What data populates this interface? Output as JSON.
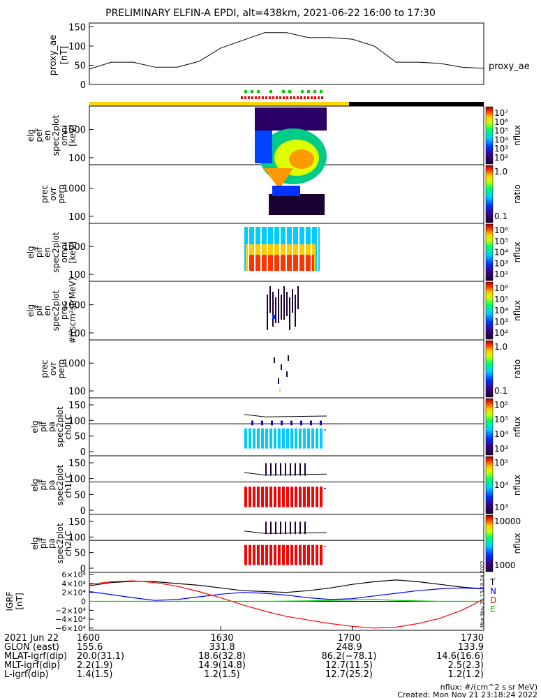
{
  "title": "PRELIMINARY ELFIN-A EPDI, alt=438km, 2021-06-22 16:00 to 17:30",
  "colors": {
    "orbit_sun": "#ffd700",
    "orbit_dark": "#000000",
    "tick_green": "#00cc00",
    "tick_red": "#ff0000",
    "igrf_x": "#000000",
    "igrf_y": "#0000ff",
    "igrf_z": "#ff0000",
    "igrf_e": "#00cc00"
  },
  "panels": [
    {
      "id": "ae",
      "ylabel": [
        "proxy_ae",
        "[nT]"
      ],
      "ticks": [
        "150",
        "100",
        "50",
        "0"
      ]
    },
    {
      "id": "p1",
      "ylabel": [
        "elg",
        "pef",
        "en",
        "spec2plot",
        "omni",
        "[keV]"
      ],
      "ticks": [
        "1000",
        "100"
      ],
      "cbar": {
        "kind": "log",
        "labels": [
          "10⁷",
          "10⁶",
          "10⁵",
          "10⁴",
          "10³",
          "10²"
        ],
        "unit": "nflux"
      }
    },
    {
      "id": "p2",
      "ylabel": [
        "prec",
        "ovr",
        "perp"
      ],
      "ticks": [
        "1000",
        "100"
      ],
      "cbar": {
        "kind": "ratio",
        "labels": [
          "1.0",
          "0.1"
        ],
        "unit": "ratio"
      }
    },
    {
      "id": "p3",
      "ylabel": [
        "elg",
        "pif",
        "en",
        "spec2plot",
        "omni",
        "[keV]"
      ],
      "ticks": [
        "1000",
        "100"
      ],
      "cbar": {
        "kind": "log",
        "labels": [
          "10⁶",
          "10⁵",
          "10⁴",
          "10³",
          "10²"
        ],
        "unit": "nflux"
      }
    },
    {
      "id": "p4",
      "ylabel": [
        "elg",
        "pif",
        "en",
        "spec2plot",
        "prec",
        "#/(scm²strMeV)"
      ],
      "ticks": [
        "1000",
        "100"
      ],
      "cbar": {
        "kind": "log",
        "labels": [
          "10⁶",
          "10⁵",
          "10⁴",
          "10³",
          "10²"
        ],
        "unit": "nflux"
      }
    },
    {
      "id": "p5",
      "ylabel": [
        "prec",
        "ovr",
        "perp"
      ],
      "ticks": [
        "1000",
        "100"
      ],
      "cbar": {
        "kind": "ratio",
        "labels": [
          "1.0",
          "0.1"
        ],
        "unit": "ratio"
      }
    },
    {
      "id": "p6",
      "ylabel": [
        "elg",
        "pif",
        "pa",
        "spec2plot",
        "ch0LC"
      ],
      "ticks": [
        "150",
        "100",
        "50",
        "0"
      ],
      "cbar": {
        "kind": "log",
        "labels": [
          "10⁵",
          "10⁵",
          "10⁴",
          "10³"
        ],
        "unit": "nflux"
      }
    },
    {
      "id": "p7",
      "ylabel": [
        "elg",
        "pif",
        "pa",
        "spec2plot",
        "ch1LC"
      ],
      "ticks": [
        "150",
        "100",
        "50",
        "0"
      ],
      "cbar": {
        "kind": "log",
        "labels": [
          "10⁵",
          "10⁴",
          "10³"
        ],
        "unit": "nflux"
      }
    },
    {
      "id": "p8",
      "ylabel": [
        "elg",
        "pif",
        "pa",
        "spec2plot",
        "ch2LC"
      ],
      "ticks": [
        "150",
        "100",
        "50",
        "0"
      ],
      "cbar": {
        "kind": "log",
        "labels": [
          "10000",
          "1000"
        ],
        "unit": "nflux"
      }
    },
    {
      "id": "igrf",
      "ylabel": [
        "IGRF",
        "[nT]"
      ],
      "ticks": [
        "6×10⁴",
        "4×10⁴",
        "2×10⁴",
        "0",
        "−2×10⁴",
        "−4×10⁴",
        "−6×10⁴"
      ]
    }
  ],
  "chart_data": {
    "type": "line",
    "x_unit": "UT (HHMM)",
    "xlim": [
      "1600",
      "1730"
    ],
    "proxy_ae": {
      "name": "proxy_ae",
      "x": [
        "1600",
        "1605",
        "1610",
        "1615",
        "1620",
        "1625",
        "1630",
        "1635",
        "1640",
        "1645",
        "1650",
        "1655",
        "1700",
        "1705",
        "1710",
        "1715",
        "1720",
        "1725",
        "1730"
      ],
      "y": [
        40,
        58,
        58,
        45,
        45,
        60,
        95,
        115,
        135,
        135,
        122,
        122,
        118,
        100,
        58,
        58,
        55,
        45,
        42
      ],
      "ylim": [
        0,
        160
      ]
    },
    "igrf": {
      "x": [
        "1600",
        "1605",
        "1610",
        "1615",
        "1620",
        "1625",
        "1630",
        "1635",
        "1640",
        "1645",
        "1650",
        "1655",
        "1700",
        "1705",
        "1710",
        "1715",
        "1720",
        "1725",
        "1730"
      ],
      "ylim": [
        -65000,
        65000
      ],
      "series": [
        {
          "name": "X",
          "y": [
            35000,
            42000,
            45000,
            44000,
            40000,
            36000,
            30000,
            24000,
            22000,
            20000,
            24000,
            30000,
            38000,
            44000,
            48000,
            44000,
            38000,
            32000,
            28000
          ]
        },
        {
          "name": "Y",
          "y": [
            22000,
            15000,
            8000,
            2000,
            4000,
            10000,
            16000,
            20000,
            18000,
            14000,
            8000,
            4000,
            6000,
            12000,
            18000,
            24000,
            28000,
            30000,
            28000
          ]
        },
        {
          "name": "Z",
          "y": [
            38000,
            44000,
            46000,
            42000,
            34000,
            22000,
            8000,
            -8000,
            -22000,
            -34000,
            -42000,
            -50000,
            -56000,
            -60000,
            -58000,
            -50000,
            -38000,
            -20000,
            5000
          ]
        },
        {
          "name": "E",
          "y": [
            0,
            0,
            0,
            0,
            0,
            0,
            0,
            0,
            0,
            500,
            1000,
            2000,
            3000,
            4000,
            2000,
            1000,
            0,
            0,
            0
          ]
        }
      ],
      "legend": [
        "T",
        "N",
        "D",
        "E"
      ]
    }
  },
  "xaxis_rows": [
    {
      "label": "2021 Jun 22",
      "values": [
        "1600",
        "1630",
        "1700",
        "1730"
      ]
    },
    {
      "label": "GLON (east)",
      "values": [
        "155.6",
        "331.8",
        "248.9",
        "133.9"
      ]
    },
    {
      "label": "MLAT-igrf(dip)",
      "values": [
        "20.0(31.1)",
        "18.6(32.8)",
        "86.2(−78.1)",
        "14.6(16.6)"
      ]
    },
    {
      "label": "MLT-igrf(dip)",
      "values": [
        "2.2(1.9)",
        "14.9(14.8)",
        "12.7(11.5)",
        "2.5(2.3)"
      ]
    },
    {
      "label": "L-igrf(dip)",
      "values": [
        "1.4(1.5)",
        "1.2(1.5)",
        "12.7(25.2)",
        "1.2(1.2)"
      ]
    }
  ],
  "footer": {
    "line1": "nflux: #/(cm^2 s sr MeV)",
    "line2": "Created: Mon Nov 21 23:18:24 2022",
    "side": "Mon Nov 21 15:18:24 2022"
  }
}
